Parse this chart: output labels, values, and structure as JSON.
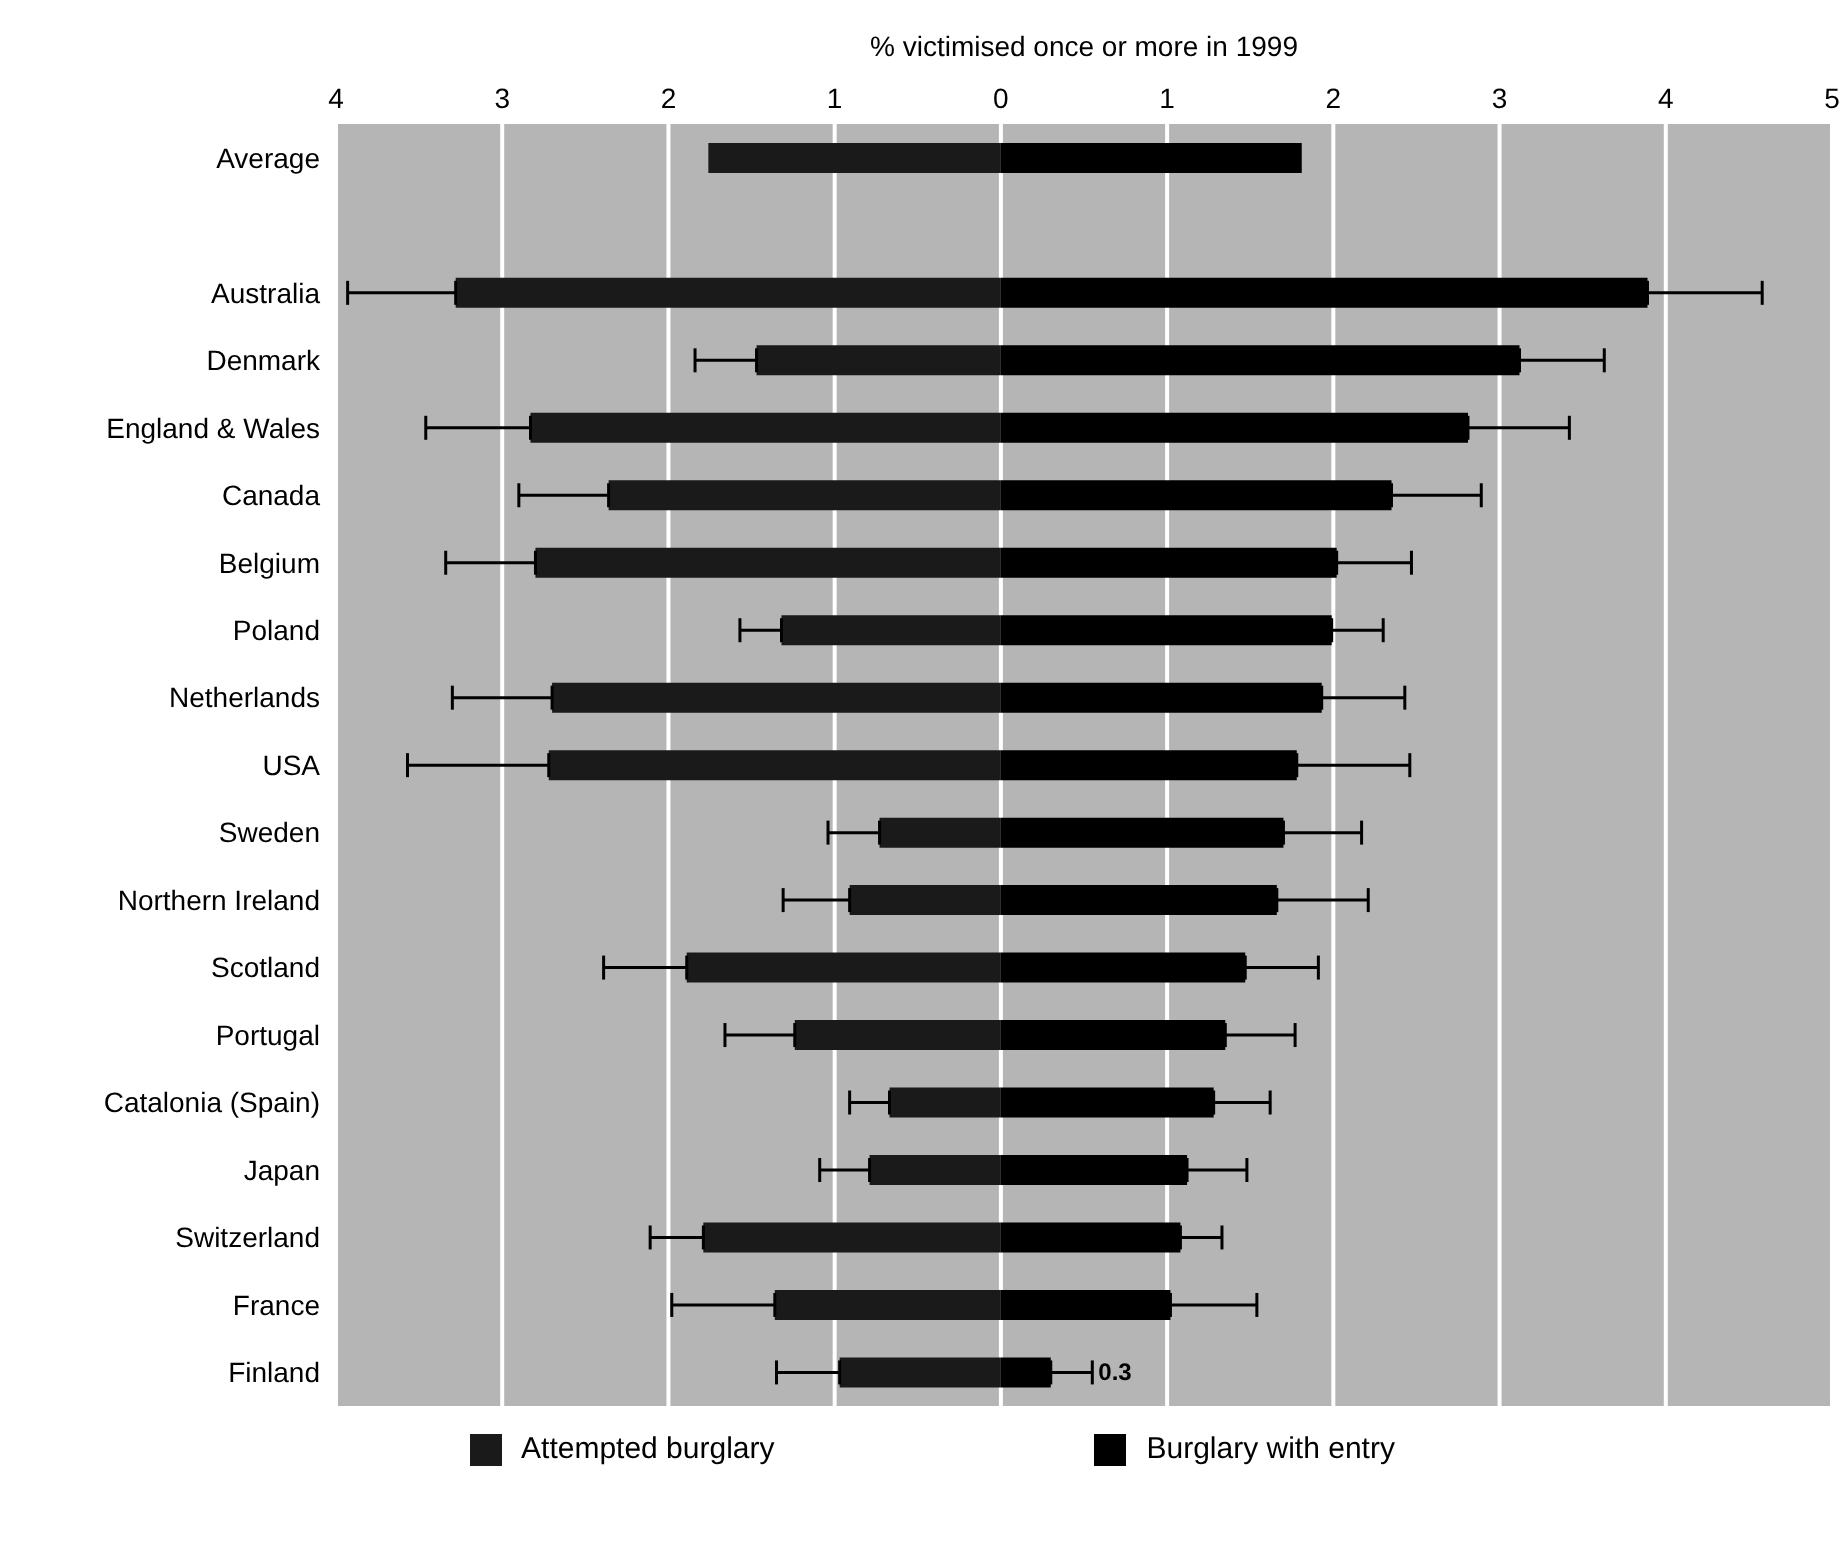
{
  "chart_data": {
    "type": "bar",
    "orientation": "horizontal",
    "stacked": true,
    "xlabel": "% victimised once or more in 1999",
    "categories": [
      "Average",
      null,
      "Australia",
      "Denmark",
      "England & Wales",
      "Canada",
      "Belgium",
      "Poland",
      "Netherlands",
      "USA",
      "Sweden",
      "Northern Ireland",
      "Scotland",
      "Portugal",
      "Catalonia (Spain)",
      "Japan",
      "Switzerland",
      "France",
      "Finland"
    ],
    "series": [
      {
        "name": "Attempted burglary",
        "color": "#1a1a1a",
        "values": [
          -1.76,
          null,
          -3.28,
          -1.47,
          -2.83,
          -2.36,
          -2.8,
          -1.32,
          -2.7,
          -2.72,
          -0.73,
          -0.91,
          -1.89,
          -1.24,
          -0.67,
          -0.79,
          -1.79,
          -1.36,
          -0.97
        ],
        "errors": [
          null,
          null,
          [
            -3.93,
            -3.28
          ],
          [
            -1.84,
            -1.47
          ],
          [
            -3.46,
            -2.83
          ],
          [
            -2.9,
            -2.36
          ],
          [
            -3.34,
            -2.8
          ],
          [
            -1.57,
            -1.32
          ],
          [
            -3.3,
            -2.7
          ],
          [
            -3.57,
            -2.72
          ],
          [
            -1.04,
            -0.73
          ],
          [
            -1.31,
            -0.91
          ],
          [
            -2.39,
            -1.89
          ],
          [
            -1.66,
            -1.24
          ],
          [
            -0.91,
            -0.67
          ],
          [
            -1.09,
            -0.79
          ],
          [
            -2.11,
            -1.79
          ],
          [
            -1.98,
            -1.36
          ],
          [
            -1.35,
            -0.97
          ]
        ]
      },
      {
        "name": "Burglary with entry",
        "color": "#000000",
        "values": [
          1.81,
          null,
          3.89,
          3.12,
          2.81,
          2.35,
          2.02,
          1.99,
          1.93,
          1.78,
          1.7,
          1.66,
          1.47,
          1.35,
          1.28,
          1.12,
          1.08,
          1.02,
          0.3
        ],
        "errors": [
          null,
          null,
          [
            3.89,
            4.58
          ],
          [
            3.12,
            3.63
          ],
          [
            2.81,
            3.42
          ],
          [
            2.35,
            2.89
          ],
          [
            2.02,
            2.47
          ],
          [
            1.99,
            2.3
          ],
          [
            1.93,
            2.43
          ],
          [
            1.78,
            2.46
          ],
          [
            1.7,
            2.17
          ],
          [
            1.66,
            2.21
          ],
          [
            1.47,
            1.91
          ],
          [
            1.35,
            1.77
          ],
          [
            1.28,
            1.62
          ],
          [
            1.12,
            1.48
          ],
          [
            1.08,
            1.33
          ],
          [
            1.02,
            1.54
          ],
          [
            0.3,
            0.55
          ]
        ],
        "value_labels": [
          null,
          null,
          null,
          null,
          null,
          null,
          null,
          null,
          null,
          null,
          null,
          null,
          null,
          null,
          null,
          null,
          null,
          null,
          "0.3"
        ]
      }
    ],
    "xlim": [
      -4,
      5
    ],
    "xticks": [
      {
        "value": -4,
        "label": "4"
      },
      {
        "value": -3,
        "label": "3"
      },
      {
        "value": -2,
        "label": "2"
      },
      {
        "value": -1,
        "label": "1"
      },
      0,
      1,
      2,
      3,
      4,
      5
    ],
    "grid": "x",
    "legend": "bottom"
  }
}
